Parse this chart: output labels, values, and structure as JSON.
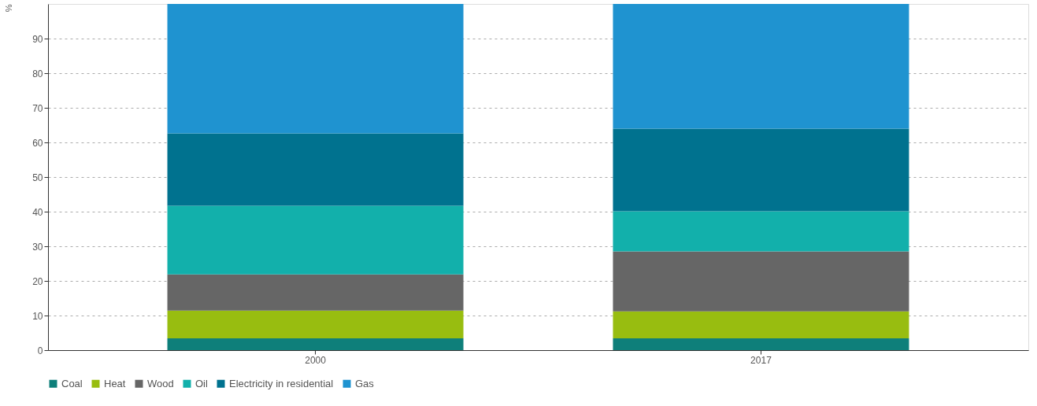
{
  "chart_data": {
    "type": "bar",
    "stacked": true,
    "ylabel": "%",
    "categories": [
      "2000",
      "2017"
    ],
    "series": [
      {
        "name": "Coal",
        "color": "#0e7f7a",
        "values": [
          3.4,
          3.4
        ]
      },
      {
        "name": "Heat",
        "color": "#98bd10",
        "values": [
          8.0,
          7.8
        ]
      },
      {
        "name": "Wood",
        "color": "#666666",
        "values": [
          10.5,
          17.3
        ]
      },
      {
        "name": "Oil",
        "color": "#12b0ab",
        "values": [
          19.8,
          11.6
        ]
      },
      {
        "name": "Electricity in residential",
        "color": "#00728f",
        "values": [
          20.9,
          23.9
        ]
      },
      {
        "name": "Gas",
        "color": "#1f93d0",
        "values": [
          37.4,
          36.0
        ]
      }
    ],
    "ylim": [
      0,
      100
    ],
    "yticks": [
      0,
      10,
      20,
      30,
      40,
      50,
      60,
      70,
      80,
      90
    ],
    "grid": "y",
    "legend": "bottom"
  }
}
